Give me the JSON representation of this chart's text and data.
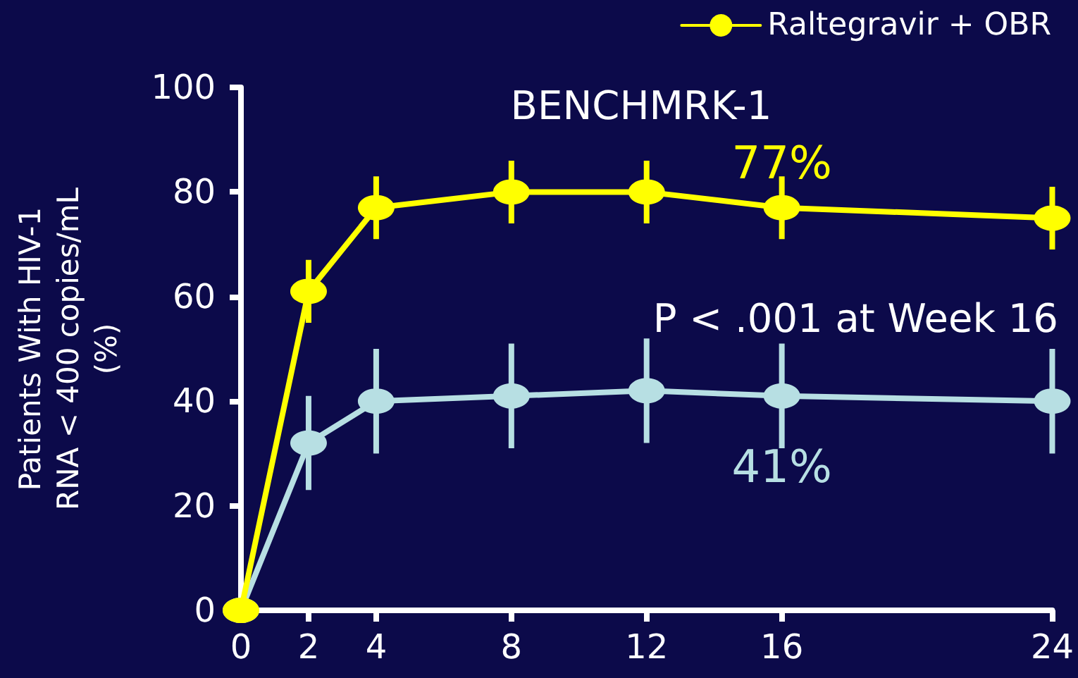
{
  "chart_data": {
    "type": "line",
    "title": "BENCHMRK-1",
    "ylabel": "Patients With HIV-1 RNA < 400 copies/mL (%)",
    "x": [
      0,
      2,
      4,
      8,
      12,
      16,
      24
    ],
    "series": [
      {
        "name": "Raltegravir + OBR",
        "color": "#ffff00",
        "values": [
          0,
          61,
          77,
          80,
          80,
          77,
          75
        ],
        "errors": [
          null,
          6,
          6,
          6,
          6,
          6,
          6
        ]
      },
      {
        "color": "#b7dfe3",
        "values": [
          0,
          32,
          40,
          41,
          42,
          41,
          40
        ],
        "errors": [
          null,
          9,
          10,
          10,
          10,
          10,
          10
        ]
      }
    ],
    "xlim": [
      0,
      24
    ],
    "xticks": [
      0,
      2,
      4,
      8,
      12,
      16,
      24
    ],
    "ylim": [
      0,
      100
    ],
    "yticks": [
      0,
      20,
      40,
      60,
      80,
      100
    ],
    "annotations": [
      {
        "text": "77%",
        "x": 16,
        "y": 77
      },
      "P < .001 at Week 16",
      {
        "text": "41%",
        "x": 16,
        "y": 41
      }
    ],
    "grid": false,
    "legend": "top right",
    "marker": "circle",
    "line_style": "solid"
  }
}
